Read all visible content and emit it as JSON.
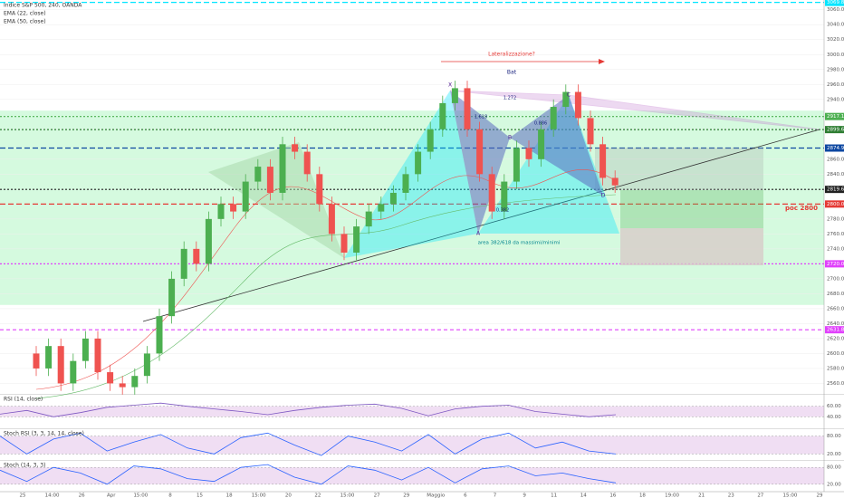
{
  "legend": {
    "title": "Indice S&P 500, 240, OANDA",
    "ema1": "EMA (22, close)",
    "ema2": "EMA (50, close)"
  },
  "chart_data": {
    "type": "candlestick",
    "open": [
      2600,
      2580,
      2610,
      2560,
      2590,
      2620,
      2575,
      2560,
      2555,
      2570,
      2600,
      2650,
      2700,
      2740,
      2720,
      2780,
      2800,
      2790,
      2830,
      2850,
      2815,
      2880,
      2870,
      2840,
      2800,
      2760,
      2735,
      2770,
      2790,
      2800,
      2815,
      2840,
      2870,
      2900,
      2935,
      2955,
      2900,
      2840,
      2790,
      2830,
      2875,
      2860,
      2900,
      2930,
      2950,
      2915,
      2880,
      2835
    ],
    "high": [
      2610,
      2620,
      2620,
      2600,
      2630,
      2630,
      2585,
      2570,
      2580,
      2610,
      2660,
      2710,
      2750,
      2750,
      2790,
      2810,
      2810,
      2840,
      2860,
      2860,
      2890,
      2890,
      2880,
      2850,
      2810,
      2770,
      2780,
      2800,
      2810,
      2825,
      2850,
      2880,
      2910,
      2945,
      2965,
      2965,
      2910,
      2850,
      2840,
      2885,
      2885,
      2910,
      2940,
      2960,
      2960,
      2925,
      2890,
      2845
    ],
    "low": [
      2570,
      2570,
      2550,
      2550,
      2580,
      2565,
      2550,
      2545,
      2545,
      2560,
      2590,
      2640,
      2690,
      2710,
      2710,
      2770,
      2780,
      2780,
      2820,
      2805,
      2805,
      2860,
      2830,
      2790,
      2750,
      2725,
      2725,
      2760,
      2780,
      2790,
      2805,
      2830,
      2860,
      2890,
      2925,
      2890,
      2830,
      2780,
      2780,
      2820,
      2850,
      2850,
      2890,
      2920,
      2905,
      2870,
      2825,
      2815
    ],
    "close": [
      2580,
      2610,
      2560,
      2590,
      2620,
      2575,
      2560,
      2555,
      2570,
      2600,
      2650,
      2700,
      2740,
      2720,
      2780,
      2800,
      2790,
      2830,
      2850,
      2815,
      2880,
      2870,
      2840,
      2800,
      2760,
      2735,
      2770,
      2790,
      2800,
      2815,
      2840,
      2870,
      2900,
      2935,
      2955,
      2900,
      2840,
      2790,
      2830,
      2875,
      2860,
      2900,
      2930,
      2950,
      2915,
      2880,
      2835,
      2825
    ],
    "up_color": "#4caf50",
    "down_color": "#ef5350",
    "ylim": [
      2546,
      3073
    ],
    "yticks": [
      {
        "value": 2560,
        "label": "2560.0"
      },
      {
        "value": 2580,
        "label": "2580.0"
      },
      {
        "value": 2600,
        "label": "2600.0"
      },
      {
        "value": 2620,
        "label": "2620.0"
      },
      {
        "value": 2640,
        "label": "2640.0"
      },
      {
        "value": 2660,
        "label": "2660.0"
      },
      {
        "value": 2680,
        "label": "2680.0"
      },
      {
        "value": 2700,
        "label": "2700.0"
      },
      {
        "value": 2740,
        "label": "2740.0"
      },
      {
        "value": 2760,
        "label": "2760.0"
      },
      {
        "value": 2780,
        "label": "2780.0"
      },
      {
        "value": 2840,
        "label": "2840.0"
      },
      {
        "value": 2860,
        "label": "2860.0"
      },
      {
        "value": 2900,
        "label": "2900.0"
      },
      {
        "value": 2940,
        "label": "2940.0"
      },
      {
        "value": 2960,
        "label": "2960.0"
      },
      {
        "value": 2980,
        "label": "2980.0"
      },
      {
        "value": 3000,
        "label": "3000.0"
      },
      {
        "value": 3020,
        "label": "3020.0"
      },
      {
        "value": 3040,
        "label": "3040.0"
      },
      {
        "value": 3060,
        "label": "3060.0"
      }
    ],
    "zone": {
      "from": 2665,
      "to": 2925,
      "color": "#b9f6ca"
    },
    "levels": [
      {
        "price": {
          "value": 3069.8,
          "label": "3069.8"
        },
        "color": "#00e5ff",
        "dash": "6 3"
      },
      {
        "price": {
          "value": 2917.1,
          "label": "2917.1"
        },
        "color": "#4caf50",
        "dash": "2 2"
      },
      {
        "price": {
          "value": 2899.6,
          "label": "2899.6"
        },
        "color": "#2e7d32",
        "dash": "2 2"
      },
      {
        "price": {
          "value": 2874.9,
          "label": "2874.9"
        },
        "color": "#0d47a1",
        "dash": "6 3"
      },
      {
        "price": {
          "value": 2819.6,
          "label": "2819.6"
        },
        "color": "#212121",
        "dash": "2 2"
      },
      {
        "price": {
          "value": 2800,
          "label": "2800.0"
        },
        "color": "#e53935",
        "dash": "6 3"
      },
      {
        "price": {
          "value": 2720,
          "label": "2720.0"
        },
        "color": "#e040fb",
        "dash": "2 2"
      },
      {
        "price": {
          "value": 2631.8,
          "label": "2631.8"
        },
        "color": "#e040fb",
        "dash": "4 3"
      }
    ],
    "annotations": [
      "Lateralizzazione?",
      "Bat",
      "area 382/618 da massimi/minimi",
      "poc 2800",
      "X",
      "A",
      "B",
      "C",
      "D",
      "0.382",
      "0.886",
      "1.618",
      "1.272"
    ],
    "indicators": [
      {
        "name": "RSI (14, close)",
        "color": "#7e57c2",
        "ylim": [
          20,
          80
        ],
        "yticks": [
          {
            "value": 60,
            "label": "60.00"
          },
          {
            "value": 40,
            "label": "40.00"
          }
        ],
        "values": [
          45,
          52,
          40,
          48,
          58,
          62,
          66,
          60,
          55,
          50,
          44,
          52,
          58,
          62,
          64,
          56,
          42,
          55,
          60,
          62,
          50,
          45,
          40,
          44
        ]
      },
      {
        "name": "Stoch RSI (3, 3, 14, 14, close)",
        "color": "#2962ff",
        "ylim": [
          0,
          100
        ],
        "yticks": [
          {
            "value": 80,
            "label": "80.00"
          },
          {
            "value": 20,
            "label": "20.00"
          }
        ],
        "values": [
          80,
          20,
          70,
          90,
          30,
          60,
          85,
          40,
          20,
          75,
          90,
          50,
          15,
          80,
          60,
          30,
          85,
          20,
          70,
          90,
          40,
          60,
          30,
          20
        ]
      },
      {
        "name": "Stoch (14, 3, 3)",
        "color": "#2962ff",
        "ylim": [
          0,
          100
        ],
        "yticks": [
          {
            "value": 80,
            "label": "80.00"
          },
          {
            "value": 20,
            "label": "20.00"
          }
        ],
        "values": [
          70,
          30,
          80,
          60,
          20,
          85,
          75,
          40,
          30,
          80,
          90,
          45,
          20,
          85,
          70,
          35,
          80,
          25,
          75,
          85,
          50,
          60,
          40,
          25
        ]
      }
    ],
    "x_labels": [
      "25",
      "14:00",
      "26",
      "Apr",
      "15:00",
      "8",
      "15",
      "18",
      "15:00",
      "20",
      "22",
      "15:00",
      "27",
      "29",
      "Maggio",
      "6",
      "7",
      "9",
      "11",
      "14",
      "16",
      "18",
      "19:00",
      "21",
      "23",
      "27",
      "15:00",
      "29"
    ]
  }
}
